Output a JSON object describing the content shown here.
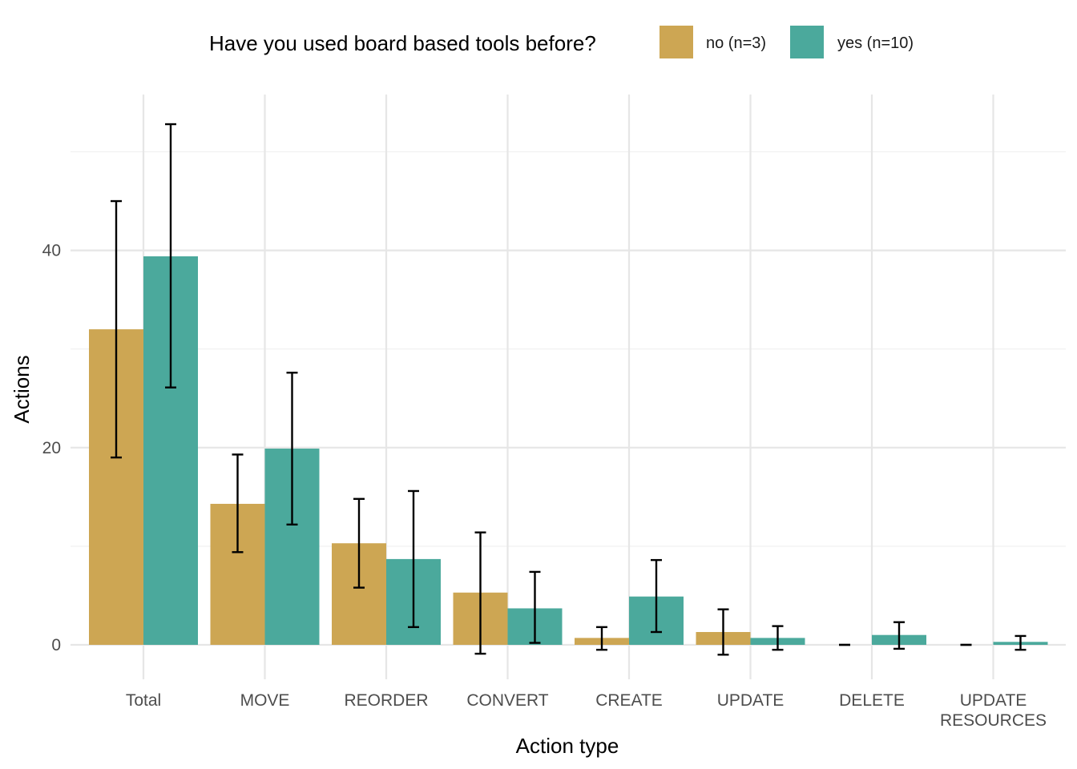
{
  "chart_data": {
    "type": "bar",
    "categories": [
      "Total",
      "MOVE",
      "REORDER",
      "CONVERT",
      "CREATE",
      "UPDATE",
      "DELETE",
      "UPDATE\nRESOURCES"
    ],
    "series": [
      {
        "name": "no (n=3)",
        "color": "#CDA653",
        "values": [
          32,
          14.3,
          10.3,
          5.3,
          0.7,
          1.3,
          0,
          0
        ],
        "error_low": [
          19,
          9.4,
          5.8,
          -0.9,
          -0.5,
          -1.0,
          0,
          0
        ],
        "error_high": [
          45,
          19.3,
          14.8,
          11.4,
          1.8,
          3.6,
          0,
          0
        ]
      },
      {
        "name": "yes (n=10)",
        "color": "#4BA99C",
        "values": [
          39.4,
          19.9,
          8.7,
          3.7,
          4.9,
          0.7,
          1.0,
          0.3
        ],
        "error_low": [
          26.1,
          12.2,
          1.8,
          0.2,
          1.3,
          -0.5,
          -0.4,
          -0.5
        ],
        "error_high": [
          52.8,
          27.6,
          15.6,
          7.4,
          8.6,
          1.9,
          2.3,
          0.9
        ]
      }
    ],
    "legend_title": "Have you used board based tools before?",
    "legend_position": "top",
    "xlabel": "Action type",
    "ylabel": "Actions",
    "yticks": [
      0,
      20,
      40
    ],
    "ylim": [
      -3,
      56
    ],
    "grid": true
  }
}
